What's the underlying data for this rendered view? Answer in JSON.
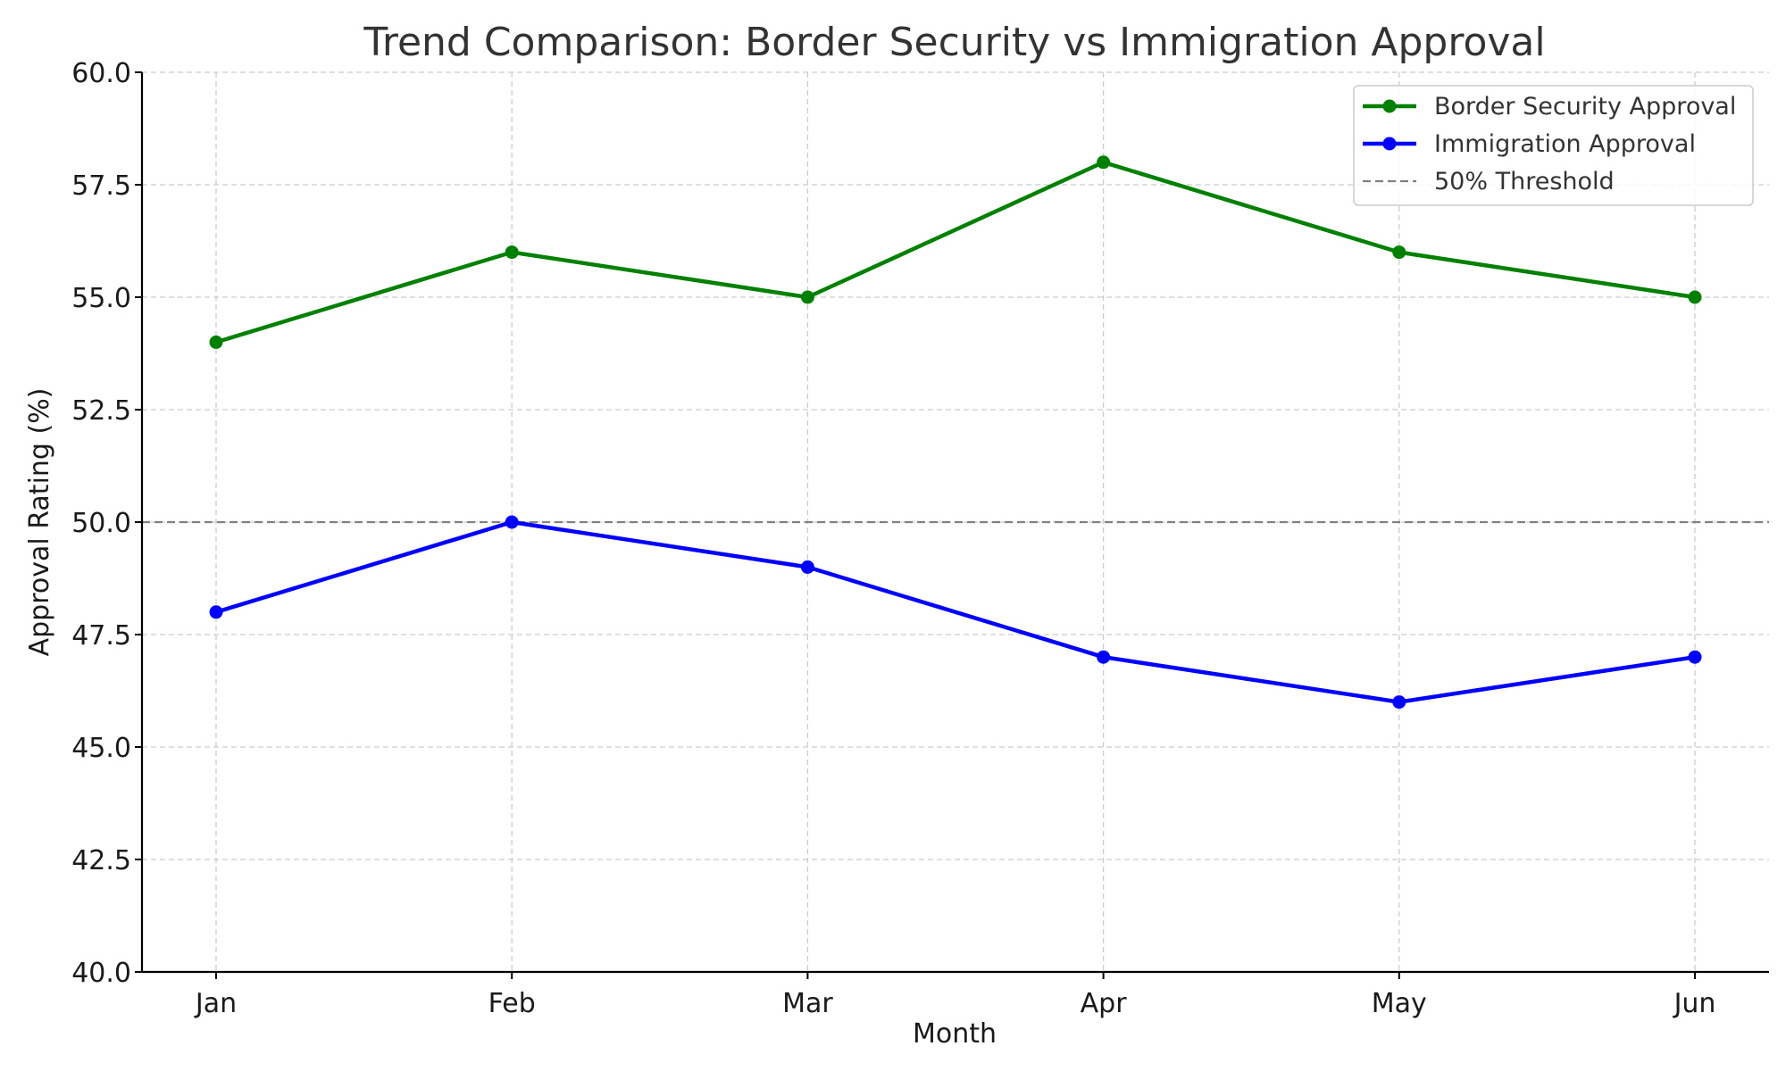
{
  "chart_data": {
    "type": "line",
    "title": "Trend Comparison: Border Security vs Immigration Approval",
    "xlabel": "Month",
    "ylabel": "Approval Rating (%)",
    "categories": [
      "Jan",
      "Feb",
      "Mar",
      "Apr",
      "May",
      "Jun"
    ],
    "ylim": [
      40,
      60
    ],
    "yticks": [
      "40.0",
      "42.5",
      "45.0",
      "47.5",
      "50.0",
      "52.5",
      "55.0",
      "57.5",
      "60.0"
    ],
    "grid": true,
    "legend_position": "top-right",
    "series": [
      {
        "name": "Border Security Approval",
        "color": "#008000",
        "values": [
          54,
          56,
          55,
          58,
          56,
          55
        ]
      },
      {
        "name": "Immigration Approval",
        "color": "#0000ff",
        "values": [
          48,
          50,
          49,
          47,
          46,
          47
        ]
      }
    ],
    "reference_lines": [
      {
        "name": "50% Threshold",
        "value": 50,
        "color": "#808080",
        "style": "dashed"
      }
    ]
  }
}
